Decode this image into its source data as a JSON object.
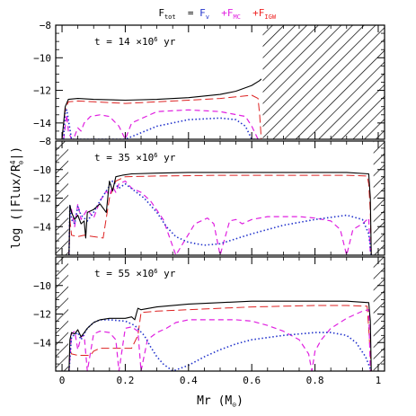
{
  "chart_data": {
    "type": "line",
    "title_parts": [
      {
        "text": "F",
        "sub": "tot",
        "color": "#000000"
      },
      {
        "text": " = ",
        "sub": "",
        "color": "#000000"
      },
      {
        "text": "F",
        "sub": "v",
        "color": "#2233cc"
      },
      {
        "text": " +",
        "sub": "",
        "color": "#e020e0"
      },
      {
        "text": "F",
        "sub": "MC",
        "color": "#e020e0"
      },
      {
        "text": " +",
        "sub": "",
        "color": "#ee2222"
      },
      {
        "text": "F",
        "sub": "IGW",
        "color": "#ee2222"
      }
    ],
    "xlabel": "Mr  (M",
    "xlabel_symbol": "⊙",
    "xlabel_tail": ")",
    "ylabel": "log  (|Flux/R",
    "ylabel_sup": "4",
    "ylabel_sub": "⊙",
    "ylabel_tail": "|)",
    "xlim": [
      -0.02,
      1.02
    ],
    "ylim": [
      -16,
      -8
    ],
    "xticks": [
      0,
      0.2,
      0.4,
      0.6,
      0.8,
      1
    ],
    "xtick_labels": [
      "0",
      "0.2",
      "0.4",
      "0.6",
      "0.8",
      "1"
    ],
    "colors": {
      "total": "#000000",
      "v": "#2233cc",
      "mc": "#e020e0",
      "igw": "#dd2222"
    },
    "panels": [
      {
        "label": "t = 14 ×10",
        "label_sup": "6",
        "label_unit": " yr",
        "ylim": [
          -15,
          -8
        ],
        "yticks": [
          -8,
          -10,
          -12,
          -14
        ],
        "ytick_labels": [
          "−8",
          "−10",
          "−12",
          "−14"
        ],
        "hatch": [
          [
            0.635,
            1.02
          ]
        ],
        "series": {
          "total": {
            "x": [
              0.0,
              0.01,
              0.02,
              0.05,
              0.1,
              0.2,
              0.3,
              0.4,
              0.5,
              0.55,
              0.6,
              0.625,
              0.63
            ],
            "y": [
              -16,
              -13.0,
              -12.55,
              -12.5,
              -12.55,
              -12.6,
              -12.55,
              -12.45,
              -12.25,
              -12.05,
              -11.7,
              -11.4,
              -11.3
            ]
          },
          "igw": {
            "x": [
              0.0,
              0.01,
              0.02,
              0.05,
              0.1,
              0.2,
              0.3,
              0.4,
              0.5,
              0.55,
              0.6,
              0.62,
              0.625,
              0.63
            ],
            "y": [
              -16,
              -13.2,
              -12.7,
              -12.65,
              -12.7,
              -12.8,
              -12.7,
              -12.6,
              -12.5,
              -12.4,
              -12.3,
              -12.5,
              -13.5,
              -16
            ]
          },
          "mc": {
            "x": [
              0.005,
              0.01,
              0.015,
              0.02,
              0.03,
              0.04,
              0.05,
              0.06,
              0.07,
              0.09,
              0.12,
              0.15,
              0.18,
              0.2,
              0.22,
              0.3,
              0.4,
              0.5,
              0.58,
              0.6,
              0.62,
              0.63
            ],
            "y": [
              -16,
              -14.2,
              -13.5,
              -14.5,
              -16,
              -14.8,
              -14.3,
              -14.5,
              -14.0,
              -13.6,
              -13.5,
              -13.6,
              -14.2,
              -16,
              -14.0,
              -13.3,
              -13.2,
              -13.3,
              -13.6,
              -14.2,
              -15.5,
              -16
            ]
          },
          "v": {
            "x": [
              0.005,
              0.01,
              0.015,
              0.02,
              0.03,
              0.05,
              0.08,
              0.1,
              0.13,
              0.15,
              0.2,
              0.3,
              0.4,
              0.5,
              0.55,
              0.58,
              0.6,
              0.62
            ],
            "y": [
              -16,
              -13.3,
              -13.2,
              -13.8,
              -15.0,
              -16,
              -15.8,
              -15.3,
              -16,
              -15.8,
              -15.0,
              -14.2,
              -13.8,
              -13.7,
              -13.8,
              -14.2,
              -15.0,
              -16
            ]
          }
        }
      },
      {
        "label": "t = 35 ×10",
        "label_sup": "6",
        "label_unit": " yr",
        "ylim": [
          -16,
          -8
        ],
        "yticks": [
          -8,
          -10,
          -12,
          -14
        ],
        "ytick_labels": [
          "−8",
          "−10",
          "−12",
          "−14"
        ],
        "hatch": [
          [
            -0.02,
            0.02
          ],
          [
            0.985,
            1.02
          ]
        ],
        "series": {
          "total": {
            "x": [
              0.022,
              0.025,
              0.03,
              0.04,
              0.05,
              0.06,
              0.07,
              0.075,
              0.08,
              0.1,
              0.12,
              0.14,
              0.15,
              0.16,
              0.17,
              0.19,
              0.22,
              0.3,
              0.4,
              0.5,
              0.6,
              0.7,
              0.8,
              0.9,
              0.97,
              0.975,
              0.978
            ],
            "y": [
              -16,
              -12.5,
              -13.0,
              -13.5,
              -13.2,
              -13.8,
              -13.6,
              -14.8,
              -13.0,
              -12.8,
              -12.4,
              -13.0,
              -10.8,
              -11.5,
              -10.5,
              -10.4,
              -10.3,
              -10.25,
              -10.2,
              -10.2,
              -10.2,
              -10.2,
              -10.2,
              -10.2,
              -10.3,
              -12,
              -16
            ]
          },
          "igw": {
            "x": [
              0.022,
              0.025,
              0.03,
              0.05,
              0.07,
              0.1,
              0.13,
              0.15,
              0.17,
              0.2,
              0.3,
              0.5,
              0.7,
              0.9,
              0.965,
              0.97,
              0.975,
              0.978
            ],
            "y": [
              -16,
              -13.5,
              -14.6,
              -14.7,
              -14.6,
              -14.7,
              -14.8,
              -12.0,
              -10.8,
              -10.5,
              -10.45,
              -10.4,
              -10.4,
              -10.4,
              -10.45,
              -11.0,
              -13,
              -16
            ]
          },
          "mc": {
            "x": [
              0.022,
              0.025,
              0.03,
              0.04,
              0.05,
              0.06,
              0.08,
              0.1,
              0.12,
              0.14,
              0.15,
              0.16,
              0.17,
              0.18,
              0.2,
              0.22,
              0.25,
              0.28,
              0.32,
              0.36,
              0.42,
              0.46,
              0.48,
              0.5,
              0.53,
              0.55,
              0.57,
              0.6,
              0.65,
              0.7,
              0.75,
              0.8,
              0.85,
              0.88,
              0.9,
              0.92,
              0.95,
              0.97,
              0.975
            ],
            "y": [
              -16,
              -13.0,
              -12.8,
              -14.0,
              -12.4,
              -13.5,
              -12.8,
              -13.4,
              -12.2,
              -11.5,
              -11.8,
              -11.2,
              -11.6,
              -11.0,
              -10.8,
              -11.3,
              -11.6,
              -12.2,
              -13.5,
              -16,
              -13.8,
              -13.4,
              -13.8,
              -16,
              -13.6,
              -13.5,
              -13.8,
              -13.5,
              -13.3,
              -13.3,
              -13.3,
              -13.4,
              -13.6,
              -14.2,
              -16,
              -14.2,
              -13.8,
              -13.4,
              -16
            ]
          },
          "v": {
            "x": [
              0.022,
              0.025,
              0.03,
              0.04,
              0.05,
              0.06,
              0.08,
              0.1,
              0.12,
              0.14,
              0.16,
              0.18,
              0.2,
              0.23,
              0.26,
              0.3,
              0.33,
              0.36,
              0.4,
              0.45,
              0.5,
              0.6,
              0.7,
              0.8,
              0.9,
              0.95,
              0.97,
              0.978
            ],
            "y": [
              -16,
              -12.5,
              -13.5,
              -13.8,
              -12.6,
              -13.2,
              -13.6,
              -13.0,
              -12.2,
              -11.5,
              -10.8,
              -11.3,
              -11.0,
              -11.5,
              -12.0,
              -13.0,
              -14.0,
              -14.7,
              -15.1,
              -15.3,
              -15.2,
              -14.5,
              -13.9,
              -13.5,
              -13.2,
              -13.5,
              -14.5,
              -16
            ]
          }
        }
      },
      {
        "label": "t = 55 ×10",
        "label_sup": "6",
        "label_unit": " yr",
        "ylim": [
          -16,
          -8
        ],
        "yticks": [
          -10,
          -12,
          -14
        ],
        "ytick_labels": [
          "−10",
          "−12",
          "−14"
        ],
        "hatch": [
          [
            -0.02,
            0.02
          ],
          [
            0.985,
            1.02
          ]
        ],
        "series": {
          "total": {
            "x": [
              0.022,
              0.025,
              0.03,
              0.04,
              0.05,
              0.06,
              0.08,
              0.1,
              0.12,
              0.15,
              0.18,
              0.2,
              0.22,
              0.23,
              0.235,
              0.24,
              0.25,
              0.3,
              0.4,
              0.5,
              0.6,
              0.7,
              0.8,
              0.9,
              0.97,
              0.975,
              0.978
            ],
            "y": [
              -16,
              -13.8,
              -13.3,
              -13.4,
              -13.1,
              -13.6,
              -13.0,
              -12.6,
              -12.4,
              -12.3,
              -12.3,
              -12.3,
              -12.2,
              -12.4,
              -12.0,
              -11.6,
              -11.7,
              -11.5,
              -11.3,
              -11.2,
              -11.1,
              -11.1,
              -11.1,
              -11.1,
              -11.2,
              -12.5,
              -16
            ]
          },
          "igw": {
            "x": [
              0.022,
              0.025,
              0.03,
              0.05,
              0.07,
              0.09,
              0.1,
              0.12,
              0.15,
              0.2,
              0.22,
              0.24,
              0.25,
              0.3,
              0.4,
              0.5,
              0.6,
              0.7,
              0.8,
              0.9,
              0.965,
              0.97,
              0.978
            ],
            "y": [
              -16,
              -14.5,
              -14.8,
              -14.9,
              -14.9,
              -14.9,
              -14.6,
              -14.4,
              -14.4,
              -14.4,
              -14.4,
              -13.5,
              -11.9,
              -11.8,
              -11.7,
              -11.6,
              -11.5,
              -11.45,
              -11.4,
              -11.4,
              -11.45,
              -13.0,
              -16
            ]
          },
          "mc": {
            "x": [
              0.022,
              0.03,
              0.04,
              0.05,
              0.06,
              0.07,
              0.08,
              0.1,
              0.12,
              0.15,
              0.17,
              0.18,
              0.2,
              0.22,
              0.24,
              0.25,
              0.27,
              0.3,
              0.33,
              0.36,
              0.4,
              0.45,
              0.5,
              0.55,
              0.6,
              0.65,
              0.7,
              0.75,
              0.78,
              0.79,
              0.8,
              0.82,
              0.85,
              0.9,
              0.95,
              0.97,
              0.975
            ],
            "y": [
              -16,
              -13.4,
              -13.2,
              -14.5,
              -13.6,
              -13.5,
              -16,
              -13.4,
              -13.2,
              -13.3,
              -13.8,
              -16,
              -13.0,
              -12.9,
              -13.2,
              -16,
              -13.8,
              -13.3,
              -13.0,
              -12.6,
              -12.4,
              -12.4,
              -12.4,
              -12.4,
              -12.5,
              -12.8,
              -13.2,
              -13.8,
              -14.8,
              -16,
              -14.6,
              -13.8,
              -13.0,
              -12.3,
              -11.8,
              -11.7,
              -16
            ]
          },
          "v": {
            "x": [
              0.022,
              0.03,
              0.05,
              0.06,
              0.08,
              0.1,
              0.12,
              0.15,
              0.2,
              0.23,
              0.26,
              0.28,
              0.3,
              0.32,
              0.35,
              0.4,
              0.45,
              0.5,
              0.55,
              0.6,
              0.7,
              0.8,
              0.85,
              0.9,
              0.93,
              0.96,
              0.978
            ],
            "y": [
              -16,
              -13.6,
              -13.3,
              -13.8,
              -13.0,
              -12.6,
              -12.4,
              -12.4,
              -12.5,
              -12.8,
              -13.5,
              -14.3,
              -15.0,
              -15.5,
              -16,
              -15.6,
              -15.0,
              -14.5,
              -14.1,
              -13.8,
              -13.5,
              -13.3,
              -13.3,
              -13.5,
              -14.0,
              -15.0,
              -16
            ]
          }
        }
      }
    ]
  }
}
